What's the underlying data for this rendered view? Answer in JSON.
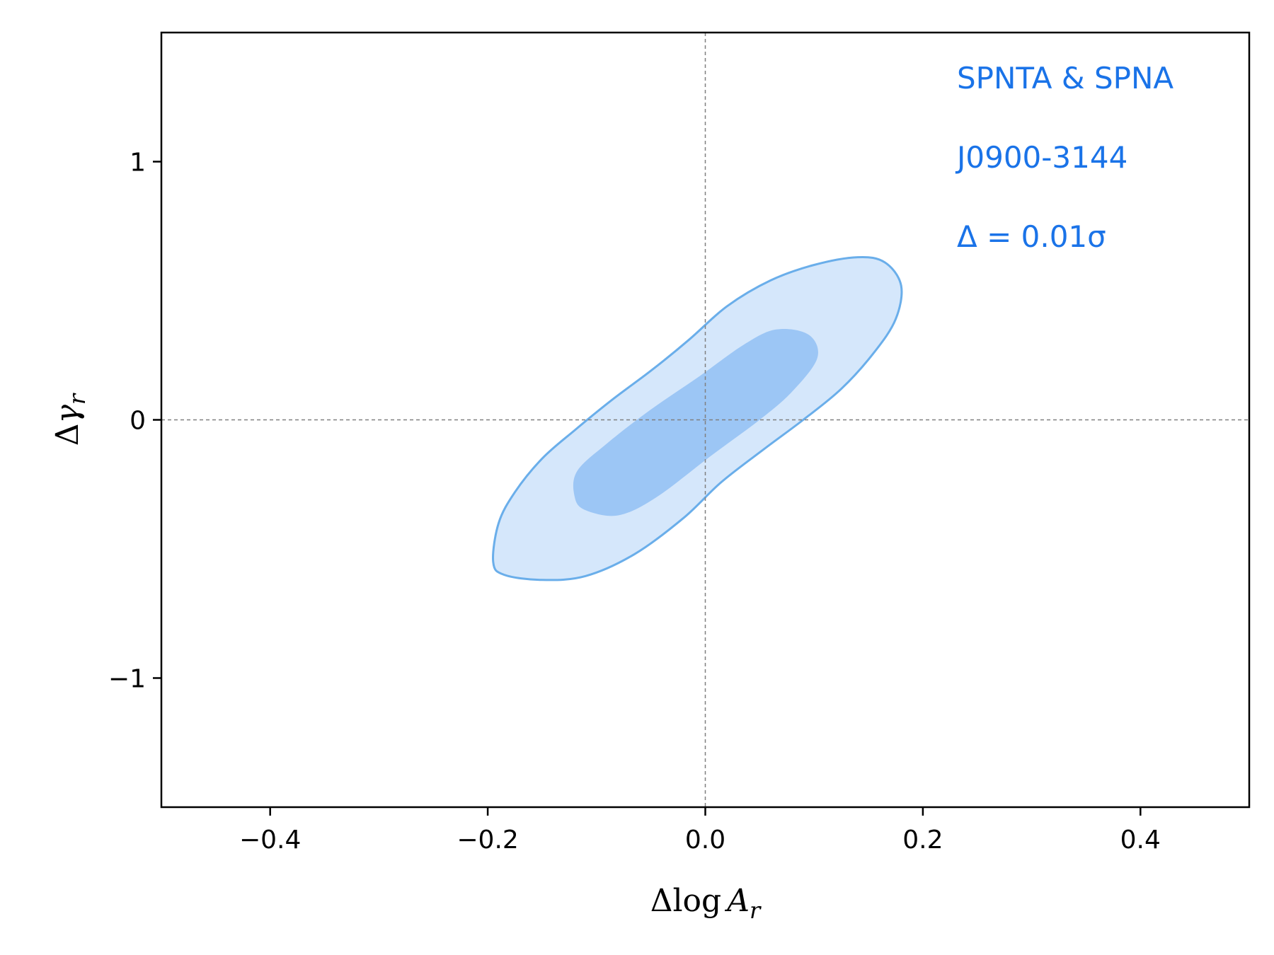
{
  "chart_data": {
    "type": "contour",
    "xlabel_parts": {
      "prefix": "Δlog",
      "var": "A",
      "sub": "r"
    },
    "ylabel_parts": {
      "prefix": "Δ",
      "var": "γ",
      "sub": "r"
    },
    "xlim": [
      -0.5,
      0.5
    ],
    "ylim": [
      -1.5,
      1.5
    ],
    "x_ticks": [
      -0.4,
      -0.2,
      0.0,
      0.2,
      0.4
    ],
    "x_tick_labels": [
      "−0.4",
      "−0.2",
      "0.0",
      "0.2",
      "0.4"
    ],
    "y_ticks": [
      -1,
      0,
      1
    ],
    "y_tick_labels": [
      "−1",
      "0",
      "1"
    ],
    "reference_lines": {
      "x": 0,
      "y": 0
    },
    "annotations": [
      "SPNTA & SPNA",
      "J0900-3144",
      "Δ = 0.01σ"
    ],
    "colors": {
      "outer_fill": "#d5e7fb",
      "inner_fill": "#9cc6f5",
      "outline": "#6aaeea",
      "annotation": "#1a73e8",
      "reference": "#808080"
    },
    "contours": [
      {
        "name": "outer",
        "points": [
          [
            -0.195,
            -0.55
          ],
          [
            -0.19,
            -0.4
          ],
          [
            -0.175,
            -0.28
          ],
          [
            -0.15,
            -0.15
          ],
          [
            -0.12,
            -0.04
          ],
          [
            -0.085,
            0.08
          ],
          [
            -0.05,
            0.19
          ],
          [
            -0.015,
            0.31
          ],
          [
            0.02,
            0.44
          ],
          [
            0.06,
            0.54
          ],
          [
            0.1,
            0.6
          ],
          [
            0.14,
            0.63
          ],
          [
            0.165,
            0.61
          ],
          [
            0.18,
            0.52
          ],
          [
            0.175,
            0.39
          ],
          [
            0.155,
            0.26
          ],
          [
            0.125,
            0.12
          ],
          [
            0.09,
            0.0
          ],
          [
            0.055,
            -0.11
          ],
          [
            0.015,
            -0.24
          ],
          [
            -0.02,
            -0.38
          ],
          [
            -0.065,
            -0.52
          ],
          [
            -0.11,
            -0.605
          ],
          [
            -0.15,
            -0.62
          ],
          [
            -0.185,
            -0.6
          ]
        ]
      },
      {
        "name": "inner",
        "points": [
          [
            -0.12,
            -0.3
          ],
          [
            -0.118,
            -0.2
          ],
          [
            -0.09,
            -0.09
          ],
          [
            -0.05,
            0.04
          ],
          [
            -0.005,
            0.17
          ],
          [
            0.035,
            0.29
          ],
          [
            0.065,
            0.35
          ],
          [
            0.095,
            0.33
          ],
          [
            0.103,
            0.24
          ],
          [
            0.08,
            0.11
          ],
          [
            0.05,
            0.0
          ],
          [
            0.005,
            -0.14
          ],
          [
            -0.045,
            -0.3
          ],
          [
            -0.08,
            -0.37
          ],
          [
            -0.11,
            -0.35
          ]
        ]
      }
    ]
  }
}
